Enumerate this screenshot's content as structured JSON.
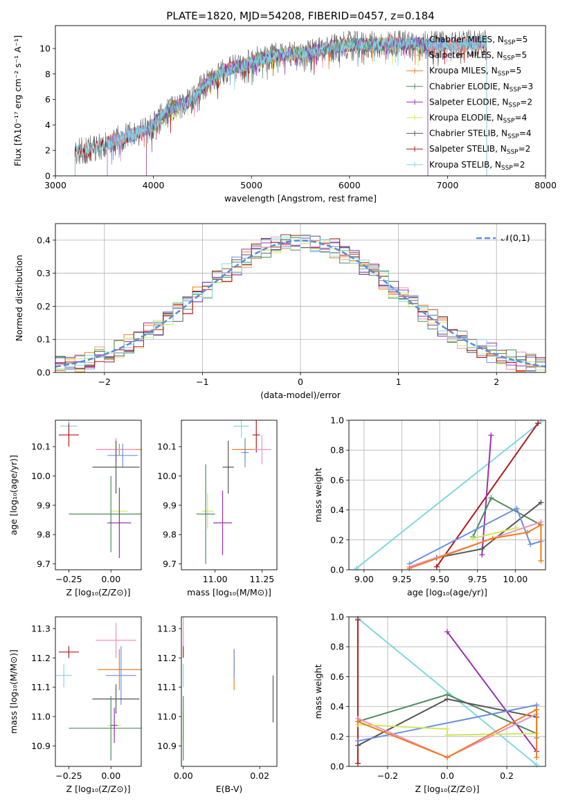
{
  "suptitle": "PLATE=1820, MJD=54208, FIBERID=0457, z=0.184",
  "series_colors": {
    "chabrier_miles": "#6b8fe0",
    "salpeter_miles": "#f08fc0",
    "kroupa_miles": "#f07d1e",
    "chabrier_elodie": "#4e8a5a",
    "salpeter_elodie": "#9a2fb0",
    "kroupa_elodie": "#cde85a",
    "chabrier_stelib": "#555555",
    "salpeter_stelib": "#b01818",
    "kroupa_stelib": "#7fd8e0"
  },
  "chart_data": [
    {
      "id": "spectrum",
      "type": "line",
      "xlabel": "wavelength [Angstrom, rest frame]",
      "ylabel": "Flux [fλ10⁻¹⁷ erg cm⁻² s⁻¹ A⁻¹]",
      "xlim": [
        3000,
        8000
      ],
      "ylim": [
        0,
        11.8
      ],
      "xticks": [
        3000,
        4000,
        5000,
        6000,
        7000,
        8000
      ],
      "yticks": [
        0,
        2,
        4,
        6,
        8,
        10
      ],
      "legend_position": "upper right",
      "legend": [
        {
          "pre": "Chabrier MILES, N",
          "sub": "SSP",
          "post": "=5",
          "color_key": "chabrier_miles"
        },
        {
          "pre": "Salpeter MILES, N",
          "sub": "SSP",
          "post": "=5",
          "color_key": "salpeter_miles"
        },
        {
          "pre": "Kroupa MILES, N",
          "sub": "SSP",
          "post": "=5",
          "color_key": "kroupa_miles"
        },
        {
          "pre": "Chabrier ELODIE, N",
          "sub": "SSP",
          "post": "=3",
          "color_key": "chabrier_elodie"
        },
        {
          "pre": "Salpeter ELODIE, N",
          "sub": "SSP",
          "post": "=2",
          "color_key": "salpeter_elodie"
        },
        {
          "pre": "Kroupa ELODIE, N",
          "sub": "SSP",
          "post": "=4",
          "color_key": "kroupa_elodie"
        },
        {
          "pre": "Chabrier STELIB, N",
          "sub": "SSP",
          "post": "=4",
          "color_key": "chabrier_stelib"
        },
        {
          "pre": "Salpeter STELIB, N",
          "sub": "SSP",
          "post": "=2",
          "color_key": "salpeter_stelib"
        },
        {
          "pre": "Kroupa STELIB, N",
          "sub": "SSP",
          "post": "=2",
          "color_key": "kroupa_stelib"
        }
      ],
      "envelope": {
        "x": [
          3200,
          3300,
          3400,
          3500,
          3600,
          3700,
          3800,
          3900,
          4000,
          4100,
          4200,
          4300,
          4400,
          4500,
          4600,
          4700,
          4800,
          4900,
          5000,
          5100,
          5200,
          5300,
          5400,
          5500,
          5600,
          5700,
          5800,
          5900,
          6000,
          6100,
          6200,
          6300,
          6400,
          6500,
          6600,
          6700,
          6800,
          6900,
          7000,
          7100,
          7200,
          7300,
          7400
        ],
        "y": [
          1.8,
          2.0,
          2.2,
          2.4,
          2.8,
          3.0,
          3.3,
          3.6,
          4.0,
          4.8,
          5.4,
          5.6,
          6.0,
          7.0,
          7.6,
          8.2,
          8.5,
          8.6,
          9.0,
          9.2,
          9.4,
          9.5,
          9.6,
          9.6,
          9.7,
          9.9,
          10.1,
          10.2,
          10.3,
          10.3,
          10.3,
          10.3,
          10.4,
          10.4,
          10.4,
          10.4,
          10.3,
          10.3,
          10.3,
          10.3,
          10.4,
          10.4,
          10.5
        ]
      },
      "wavelength_coverage": {
        "kroupa_stelib": [
          3200,
          7400
        ],
        "salpeter_stelib": [
          3200,
          7400
        ],
        "chabrier_stelib": [
          3200,
          7400
        ],
        "chabrier_miles": [
          3530,
          7400
        ],
        "salpeter_miles": [
          3530,
          7400
        ],
        "kroupa_miles": [
          3530,
          7400
        ],
        "chabrier_elodie": [
          3930,
          6800
        ],
        "salpeter_elodie": [
          3930,
          6800
        ],
        "kroupa_elodie": [
          3930,
          6800
        ]
      }
    },
    {
      "id": "residuals",
      "type": "histogram",
      "xlabel": "(data-model)/error",
      "ylabel": "Normed distribution",
      "xlim": [
        -2.5,
        2.5
      ],
      "ylim": [
        0,
        0.45
      ],
      "xticks": [
        -2,
        -1,
        0,
        1,
        2
      ],
      "yticks": [
        0.0,
        0.1,
        0.2,
        0.3,
        0.4
      ],
      "grid": true,
      "bin_width": 0.1,
      "reference_curve": {
        "label": "𝒩(0,1)",
        "color": "#5b8ed6",
        "mean": 0,
        "sigma": 1
      },
      "legend_position": "upper right"
    },
    {
      "id": "age_vs_Z",
      "type": "errorbar",
      "xlabel": "Z [log₁₀(Z/Z⊙)]",
      "ylabel": "age  [log₁₀(age/yr)]",
      "xlim": [
        -0.33,
        0.18
      ],
      "ylim": [
        9.68,
        10.19
      ],
      "xticks": [
        -0.25,
        0.0
      ],
      "yticks": [
        9.7,
        9.8,
        9.9,
        10.0,
        10.1
      ],
      "points": [
        {
          "c": "kroupa_stelib",
          "x": -0.25,
          "xe": 0.05,
          "y": 10.17,
          "ye": 0
        },
        {
          "c": "salpeter_stelib",
          "x": -0.25,
          "xe": 0.06,
          "y": 10.14,
          "ye": 0.04
        },
        {
          "c": "kroupa_miles",
          "x": 0.05,
          "xe": 0.13,
          "y": 10.09,
          "ye": 0.02
        },
        {
          "c": "salpeter_miles",
          "x": 0.03,
          "xe": 0.12,
          "y": 10.09,
          "ye": 0.04
        },
        {
          "c": "chabrier_miles",
          "x": 0.07,
          "xe": 0.09,
          "y": 10.07,
          "ye": 0.04
        },
        {
          "c": "chabrier_stelib",
          "x": 0.03,
          "xe": 0.14,
          "y": 10.03,
          "ye": 0.09
        },
        {
          "c": "kroupa_elodie",
          "x": 0.05,
          "xe": 0.05,
          "y": 9.88,
          "ye": 0.06
        },
        {
          "c": "chabrier_elodie",
          "x": 0.0,
          "xe": 0.25,
          "y": 9.87,
          "ye": 0.13
        },
        {
          "c": "salpeter_elodie",
          "x": 0.05,
          "xe": 0.07,
          "y": 9.84,
          "ye": 0.12
        }
      ]
    },
    {
      "id": "age_vs_mass",
      "type": "errorbar",
      "xlabel": "mass [log₁₀(M/M⊙)]",
      "ylabel": "",
      "xlim": [
        10.82,
        11.33
      ],
      "ylim": [
        9.68,
        10.19
      ],
      "xticks": [
        11.0,
        11.25
      ],
      "yticks": [
        9.7,
        9.8,
        9.9,
        10.0,
        10.1
      ],
      "points": [
        {
          "c": "kroupa_stelib",
          "x": 11.14,
          "xe": 0.04,
          "y": 10.17,
          "ye": 0.04
        },
        {
          "c": "salpeter_stelib",
          "x": 11.22,
          "xe": 0.02,
          "y": 10.14,
          "ye": 0.06
        },
        {
          "c": "kroupa_miles",
          "x": 11.16,
          "xe": 0.07,
          "y": 10.09,
          "ye": 0.03
        },
        {
          "c": "salpeter_miles",
          "x": 11.25,
          "xe": 0.05,
          "y": 10.09,
          "ye": 0.05
        },
        {
          "c": "chabrier_miles",
          "x": 11.16,
          "xe": 0.02,
          "y": 10.08,
          "ye": 0.05
        },
        {
          "c": "chabrier_stelib",
          "x": 11.07,
          "xe": 0.03,
          "y": 10.03,
          "ye": 0.09
        },
        {
          "c": "kroupa_elodie",
          "x": 10.96,
          "xe": 0.03,
          "y": 9.88,
          "ye": 0.06
        },
        {
          "c": "chabrier_elodie",
          "x": 10.95,
          "xe": 0.05,
          "y": 9.87,
          "ye": 0.17
        },
        {
          "c": "salpeter_elodie",
          "x": 11.04,
          "xe": 0.05,
          "y": 9.84,
          "ye": 0.11
        }
      ]
    },
    {
      "id": "weight_vs_age",
      "type": "line",
      "xlabel": "age  [log₁₀(age/yr)]",
      "ylabel": "mass weight",
      "xlim": [
        8.9,
        10.2
      ],
      "ylim": [
        0.0,
        1.0
      ],
      "xticks": [
        9.0,
        9.25,
        9.5,
        9.75,
        10.0
      ],
      "yticks": [
        0.0,
        0.2,
        0.4,
        0.6,
        0.8,
        1.0
      ],
      "grid": true,
      "series": [
        {
          "c": "kroupa_stelib",
          "x": [
            8.95,
            10.17
          ],
          "y": [
            0.01,
            0.99
          ]
        },
        {
          "c": "salpeter_stelib",
          "x": [
            9.48,
            10.15
          ],
          "y": [
            0.02,
            0.98
          ]
        },
        {
          "c": "salpeter_elodie",
          "x": [
            9.78,
            9.84
          ],
          "y": [
            0.1,
            0.9
          ]
        },
        {
          "c": "chabrier_elodie",
          "x": [
            9.72,
            9.84,
            10.17
          ],
          "y": [
            0.22,
            0.48,
            0.3
          ]
        },
        {
          "c": "chabrier_stelib",
          "x": [
            9.48,
            9.78,
            10.17
          ],
          "y": [
            0.08,
            0.14,
            0.45
          ]
        },
        {
          "c": "chabrier_miles",
          "x": [
            9.3,
            10.01,
            10.1,
            10.17
          ],
          "y": [
            0.04,
            0.41,
            0.17,
            0.19
          ]
        },
        {
          "c": "salpeter_miles",
          "x": [
            9.3,
            10.17
          ],
          "y": [
            0.02,
            0.32
          ]
        },
        {
          "c": "kroupa_elodie",
          "x": [
            9.72,
            10.01
          ],
          "y": [
            0.21,
            0.28
          ]
        },
        {
          "c": "kroupa_miles",
          "x": [
            9.3,
            9.85,
            10.08,
            10.17,
            10.17
          ],
          "y": [
            0.01,
            0.21,
            0.25,
            0.3,
            0.06
          ]
        }
      ]
    },
    {
      "id": "mass_vs_Z",
      "type": "errorbar",
      "xlabel": "Z [log₁₀(Z/Z⊙)]",
      "ylabel": "mass [log₁₀(M/M⊙)]",
      "xlim": [
        -0.33,
        0.18
      ],
      "ylim": [
        10.83,
        11.34
      ],
      "xticks": [
        -0.25,
        0.0
      ],
      "yticks": [
        10.9,
        11.0,
        11.1,
        11.2,
        11.3
      ],
      "points": [
        {
          "c": "salpeter_miles",
          "x": 0.03,
          "xe": 0.12,
          "y": 11.26,
          "ye": 0.06
        },
        {
          "c": "salpeter_stelib",
          "x": -0.25,
          "xe": 0.06,
          "y": 11.22,
          "ye": 0.02
        },
        {
          "c": "kroupa_miles",
          "x": 0.05,
          "xe": 0.13,
          "y": 11.16,
          "ye": 0.07
        },
        {
          "c": "chabrier_miles",
          "x": 0.06,
          "xe": 0.09,
          "y": 11.14,
          "ye": 0.1
        },
        {
          "c": "kroupa_stelib",
          "x": -0.28,
          "xe": 0.05,
          "y": 11.14,
          "ye": 0.04
        },
        {
          "c": "chabrier_stelib",
          "x": 0.03,
          "xe": 0.14,
          "y": 11.06,
          "ye": 0.05
        },
        {
          "c": "kroupa_elodie",
          "x": 0.02,
          "xe": 0.04,
          "y": 10.97,
          "ye": 0.04
        },
        {
          "c": "chabrier_elodie",
          "x": 0.0,
          "xe": 0.25,
          "y": 10.96,
          "ye": 0.11
        },
        {
          "c": "salpeter_elodie",
          "x": 0.02,
          "xe": 0.02,
          "y": 10.97,
          "ye": 0.06
        }
      ]
    },
    {
      "id": "mass_vs_ebv",
      "type": "errorbar",
      "xlabel": "E(B-V)",
      "ylabel": "",
      "xlim": [
        -0.0005,
        0.0245
      ],
      "ylim": [
        10.83,
        11.34
      ],
      "xticks": [
        0.0,
        0.02
      ],
      "yticks": [
        10.9,
        11.0,
        11.1,
        11.2,
        11.3
      ],
      "points": [
        {
          "c": "salpeter_miles",
          "x": 0.0,
          "xe": 0,
          "y": 11.3,
          "ye": 0.06
        },
        {
          "c": "salpeter_stelib",
          "x": 0.0,
          "xe": 0,
          "y": 11.22,
          "ye": 0.02
        },
        {
          "c": "kroupa_stelib",
          "x": 0.0,
          "xe": 0,
          "y": 11.14,
          "ye": 0.04
        },
        {
          "c": "kroupa_elodie",
          "x": 0.0,
          "xe": 0,
          "y": 10.97,
          "ye": 0.05
        },
        {
          "c": "chabrier_elodie",
          "x": 0.0,
          "xe": 0,
          "y": 10.96,
          "ye": 0.11
        },
        {
          "c": "kroupa_miles",
          "x": 0.0133,
          "xe": 0,
          "y": 11.16,
          "ye": 0.07
        },
        {
          "c": "chabrier_miles",
          "x": 0.0133,
          "xe": 0,
          "y": 11.18,
          "ye": 0.05
        },
        {
          "c": "chabrier_stelib",
          "x": 0.0235,
          "xe": 0,
          "y": 11.06,
          "ye": 0.08
        }
      ]
    },
    {
      "id": "weight_vs_Z",
      "type": "line",
      "xlabel": "Z [log₁₀(Z/Z⊙)]",
      "ylabel": "mass weight",
      "xlim": [
        -0.33,
        0.33
      ],
      "ylim": [
        0.0,
        1.0
      ],
      "xticks": [
        -0.2,
        0.0,
        0.2
      ],
      "yticks": [
        0.0,
        0.2,
        0.4,
        0.6,
        0.8,
        1.0
      ],
      "grid": true,
      "series": [
        {
          "c": "kroupa_stelib",
          "x": [
            -0.3,
            0.3
          ],
          "y": [
            0.99,
            0.01
          ]
        },
        {
          "c": "salpeter_stelib",
          "x": [
            -0.3,
            -0.3
          ],
          "y": [
            0.02,
            0.98
          ]
        },
        {
          "c": "salpeter_elodie",
          "x": [
            0.0,
            0.3
          ],
          "y": [
            0.9,
            0.1
          ]
        },
        {
          "c": "chabrier_elodie",
          "x": [
            -0.3,
            0.0,
            0.3
          ],
          "y": [
            0.3,
            0.48,
            0.22
          ]
        },
        {
          "c": "chabrier_stelib",
          "x": [
            -0.3,
            0.0,
            0.3
          ],
          "y": [
            0.14,
            0.45,
            0.33
          ]
        },
        {
          "c": "chabrier_miles",
          "x": [
            -0.3,
            0.3,
            0.3
          ],
          "y": [
            0.17,
            0.41,
            0.19
          ]
        },
        {
          "c": "salpeter_miles",
          "x": [
            -0.3,
            0.0,
            0.3
          ],
          "y": [
            0.32,
            0.06,
            0.35
          ]
        },
        {
          "c": "kroupa_elodie",
          "x": [
            -0.3,
            0.0,
            0.0,
            0.3
          ],
          "y": [
            0.28,
            0.25,
            0.21,
            0.22
          ]
        },
        {
          "c": "kroupa_miles",
          "x": [
            -0.3,
            0.0,
            0.3,
            0.3
          ],
          "y": [
            0.3,
            0.06,
            0.38,
            0.06
          ]
        }
      ]
    }
  ]
}
